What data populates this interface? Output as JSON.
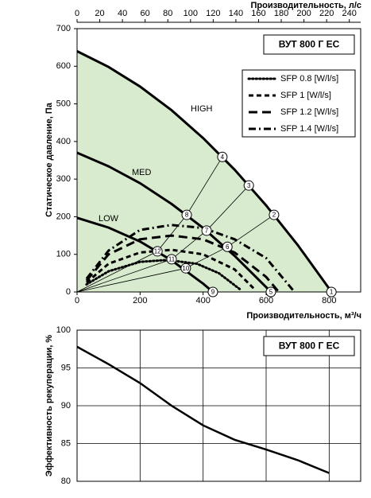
{
  "chart_data": [
    {
      "type": "line",
      "title": "ВУТ 800 Г ЕС",
      "x_label": "Производительность, м³/ч",
      "x2_label": "Производительность, л/с",
      "y_label": "Статическое давление, Па",
      "xlim": [
        0,
        900
      ],
      "xticks": [
        0,
        200,
        400,
        600,
        800
      ],
      "x2lim": [
        0,
        250
      ],
      "x2ticks": [
        0,
        20,
        40,
        60,
        80,
        100,
        120,
        140,
        160,
        180,
        200,
        220,
        240
      ],
      "ylim": [
        0,
        700
      ],
      "yticks": [
        0,
        100,
        200,
        300,
        400,
        500,
        600,
        700
      ],
      "grid": false,
      "fill_color": "#d8ebcf",
      "color": "#000000",
      "fan_curves": [
        {
          "name": "HIGH",
          "x": [
            0,
            100,
            200,
            300,
            400,
            500,
            600,
            700,
            800,
            807
          ],
          "values": [
            640,
            598,
            546,
            483,
            409,
            325,
            230,
            125,
            9,
            0
          ]
        },
        {
          "name": "MED",
          "x": [
            0,
            100,
            200,
            300,
            400,
            500,
            600,
            615
          ],
          "values": [
            370,
            334,
            289,
            234,
            170,
            96,
            13,
            0
          ]
        },
        {
          "name": "LOW",
          "x": [
            0,
            100,
            200,
            300,
            400,
            431
          ],
          "values": [
            197,
            171,
            134,
            84,
            22,
            0
          ]
        }
      ],
      "system_curves": [
        {
          "x": [
            0,
            255,
            348,
            461
          ],
          "values": [
            0,
            108,
            205,
            359
          ]
        },
        {
          "x": [
            0,
            300,
            411,
            545
          ],
          "values": [
            0,
            87,
            163,
            283
          ]
        },
        {
          "x": [
            0,
            345,
            477,
            625
          ],
          "values": [
            0,
            63,
            120,
            205
          ]
        }
      ],
      "legend": "upper right",
      "sfp_curves": [
        {
          "name": "SFP 0.8 [W/l/s]",
          "dash": "dotted",
          "x": [
            30,
            100,
            200,
            285,
            380,
            450,
            520
          ],
          "values": [
            20,
            55,
            80,
            85,
            75,
            50,
            5
          ]
        },
        {
          "name": "SFP 1 [W/l/s]",
          "dash": "short",
          "x": [
            30,
            100,
            200,
            300,
            400,
            500,
            560
          ],
          "values": [
            25,
            75,
            105,
            112,
            100,
            60,
            10
          ]
        },
        {
          "name": "SFP 1.2 [W/l/s]",
          "dash": "long",
          "x": [
            30,
            100,
            200,
            300,
            400,
            500,
            600,
            640
          ],
          "values": [
            30,
            100,
            140,
            150,
            140,
            105,
            40,
            0
          ]
        },
        {
          "name": "SFP 1.4 [W/l/s]",
          "dash": "dashdot",
          "x": [
            30,
            100,
            200,
            300,
            400,
            500,
            600,
            690
          ],
          "values": [
            35,
            110,
            165,
            178,
            170,
            140,
            90,
            0
          ]
        }
      ],
      "points": [
        {
          "label": "1",
          "x": 807,
          "y": 0
        },
        {
          "label": "2",
          "x": 625,
          "y": 205
        },
        {
          "label": "3",
          "x": 545,
          "y": 283
        },
        {
          "label": "4",
          "x": 461,
          "y": 359
        },
        {
          "label": "5",
          "x": 615,
          "y": 0
        },
        {
          "label": "6",
          "x": 477,
          "y": 120
        },
        {
          "label": "7",
          "x": 411,
          "y": 163
        },
        {
          "label": "8",
          "x": 348,
          "y": 205
        },
        {
          "label": "9",
          "x": 431,
          "y": 0
        },
        {
          "label": "10",
          "x": 345,
          "y": 63
        },
        {
          "label": "11",
          "x": 300,
          "y": 87
        },
        {
          "label": "12",
          "x": 255,
          "y": 108
        }
      ]
    },
    {
      "type": "line",
      "title": "ВУТ 800 Г ЕС",
      "y_label": "Эффективность рекуперации, %",
      "xlim": [
        0,
        900
      ],
      "xticks": [
        200,
        400,
        600,
        800
      ],
      "ylim": [
        80,
        100
      ],
      "yticks": [
        80,
        85,
        90,
        95,
        100
      ],
      "grid": true,
      "color": "#000000",
      "x": [
        0,
        100,
        200,
        300,
        400,
        500,
        600,
        700,
        800
      ],
      "values": [
        97.8,
        95.5,
        93,
        90,
        87.4,
        85.5,
        84.2,
        82.8,
        81.1
      ]
    }
  ]
}
